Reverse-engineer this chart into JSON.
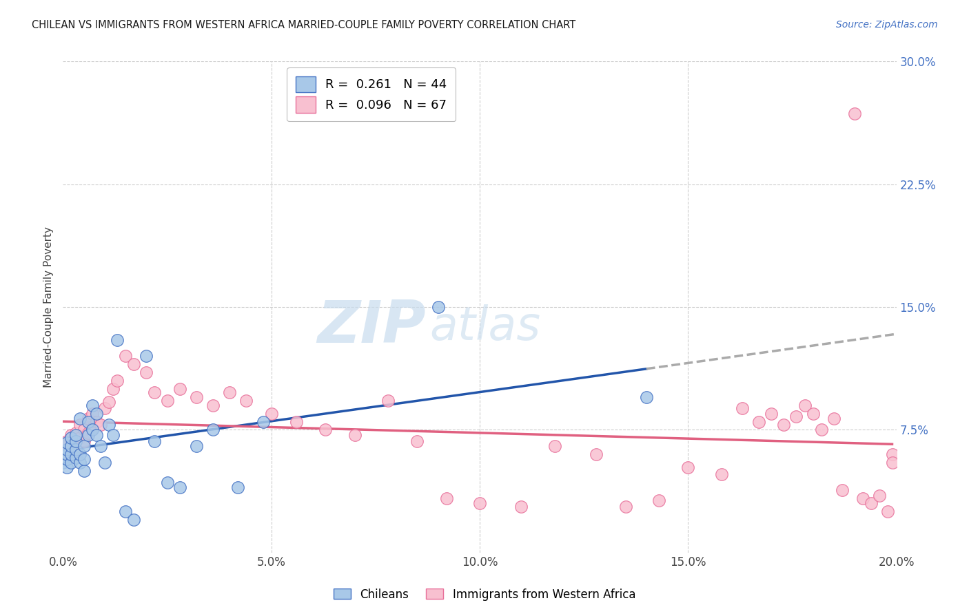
{
  "title": "CHILEAN VS IMMIGRANTS FROM WESTERN AFRICA MARRIED-COUPLE FAMILY POVERTY CORRELATION CHART",
  "source": "Source: ZipAtlas.com",
  "ylabel": "Married-Couple Family Poverty",
  "xlabel_chileans": "Chileans",
  "xlabel_immigrants": "Immigrants from Western Africa",
  "xlim": [
    0.0,
    0.2
  ],
  "ylim": [
    0.0,
    0.3
  ],
  "xticks": [
    0.0,
    0.05,
    0.1,
    0.15,
    0.2
  ],
  "yticks_right": [
    0.075,
    0.15,
    0.225,
    0.3
  ],
  "ytick_labels_right": [
    "7.5%",
    "15.0%",
    "22.5%",
    "30.0%"
  ],
  "xtick_labels": [
    "0.0%",
    "5.0%",
    "10.0%",
    "15.0%",
    "20.0%"
  ],
  "legend_r1": "0.261",
  "legend_n1": "44",
  "legend_r2": "0.096",
  "legend_n2": "67",
  "color_chilean_face": "#A8C8E8",
  "color_chilean_edge": "#4472C4",
  "color_immigrant_face": "#F8C0D0",
  "color_immigrant_edge": "#E8709A",
  "color_title": "#1a1a1a",
  "color_source": "#4472C4",
  "color_right_labels": "#4472C4",
  "color_trend_chilean": "#2255AA",
  "color_trend_immigrant": "#E06080",
  "color_trend_ext": "#AAAAAA",
  "watermark_color": "#C8DCEE",
  "chilean_x": [
    0.0,
    0.0,
    0.001,
    0.001,
    0.001,
    0.001,
    0.001,
    0.002,
    0.002,
    0.002,
    0.002,
    0.003,
    0.003,
    0.003,
    0.003,
    0.004,
    0.004,
    0.004,
    0.005,
    0.005,
    0.005,
    0.006,
    0.006,
    0.007,
    0.007,
    0.008,
    0.008,
    0.009,
    0.01,
    0.011,
    0.012,
    0.013,
    0.015,
    0.017,
    0.02,
    0.022,
    0.025,
    0.028,
    0.032,
    0.036,
    0.042,
    0.048,
    0.09,
    0.14
  ],
  "chilean_y": [
    0.055,
    0.058,
    0.052,
    0.057,
    0.06,
    0.063,
    0.067,
    0.055,
    0.06,
    0.065,
    0.07,
    0.058,
    0.063,
    0.068,
    0.072,
    0.055,
    0.06,
    0.082,
    0.05,
    0.057,
    0.065,
    0.08,
    0.072,
    0.075,
    0.09,
    0.085,
    0.072,
    0.065,
    0.055,
    0.078,
    0.072,
    0.13,
    0.025,
    0.02,
    0.12,
    0.068,
    0.043,
    0.04,
    0.065,
    0.075,
    0.04,
    0.08,
    0.15,
    0.095
  ],
  "immigrant_x": [
    0.0,
    0.0,
    0.001,
    0.001,
    0.001,
    0.002,
    0.002,
    0.002,
    0.003,
    0.003,
    0.003,
    0.004,
    0.004,
    0.005,
    0.005,
    0.006,
    0.006,
    0.007,
    0.007,
    0.008,
    0.009,
    0.01,
    0.011,
    0.012,
    0.013,
    0.015,
    0.017,
    0.02,
    0.022,
    0.025,
    0.028,
    0.032,
    0.036,
    0.04,
    0.044,
    0.05,
    0.056,
    0.063,
    0.07,
    0.078,
    0.085,
    0.092,
    0.1,
    0.11,
    0.118,
    0.128,
    0.135,
    0.143,
    0.15,
    0.158,
    0.163,
    0.167,
    0.17,
    0.173,
    0.176,
    0.178,
    0.18,
    0.182,
    0.185,
    0.187,
    0.19,
    0.192,
    0.194,
    0.196,
    0.198,
    0.199,
    0.199
  ],
  "immigrant_y": [
    0.06,
    0.065,
    0.058,
    0.063,
    0.068,
    0.06,
    0.065,
    0.072,
    0.062,
    0.067,
    0.073,
    0.07,
    0.078,
    0.068,
    0.075,
    0.073,
    0.082,
    0.076,
    0.085,
    0.08,
    0.078,
    0.088,
    0.092,
    0.1,
    0.105,
    0.12,
    0.115,
    0.11,
    0.098,
    0.093,
    0.1,
    0.095,
    0.09,
    0.098,
    0.093,
    0.085,
    0.08,
    0.075,
    0.072,
    0.093,
    0.068,
    0.033,
    0.03,
    0.028,
    0.065,
    0.06,
    0.028,
    0.032,
    0.052,
    0.048,
    0.088,
    0.08,
    0.085,
    0.078,
    0.083,
    0.09,
    0.085,
    0.075,
    0.082,
    0.038,
    0.268,
    0.033,
    0.03,
    0.035,
    0.025,
    0.06,
    0.055
  ]
}
